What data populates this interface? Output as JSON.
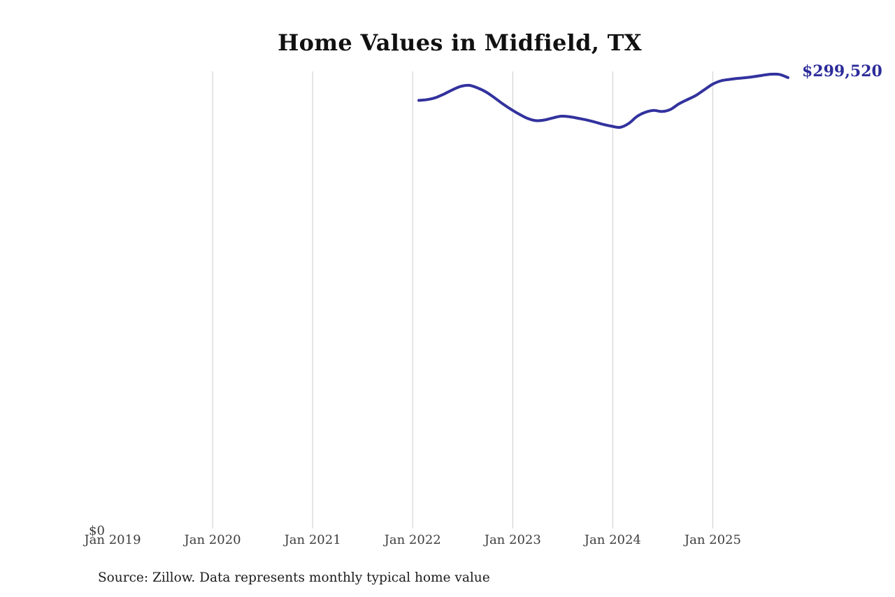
{
  "title": "Home Values in Midfield, TX",
  "end_label": "$299,520",
  "y_zero_label": "$0",
  "source_note": "Source: Zillow. Data represents monthly typical home value",
  "colors": {
    "background": "#ffffff",
    "line": "#32329e",
    "end_label": "#2c2c9b",
    "gridline": "#cccccc",
    "title_text": "#111111",
    "tick_text": "#3d3d3d",
    "source_text": "#1c1c1c"
  },
  "chart_data": {
    "type": "line",
    "title": "Home Values in Midfield, TX",
    "xlabel": "",
    "ylabel": "",
    "ylim": [
      0,
      302200
    ],
    "grid": "vertical-only",
    "legend": "none",
    "x_tick_labels": [
      "Jan 2019",
      "Jan 2020",
      "Jan 2021",
      "Jan 2022",
      "Jan 2023",
      "Jan 2024",
      "Jan 2025"
    ],
    "y_tick_labels": [
      "$0"
    ],
    "annotations": [
      {
        "text": "$299,520",
        "attached_to": "last-point"
      }
    ],
    "series": [
      {
        "name": "Monthly typical home value",
        "months": [
          "Jan 2022",
          "Feb 2022",
          "Mar 2022",
          "Apr 2022",
          "May 2022",
          "Jun 2022",
          "Jul 2022",
          "Aug 2022",
          "Sep 2022",
          "Oct 2022",
          "Nov 2022",
          "Dec 2022",
          "Jan 2023",
          "Feb 2023",
          "Mar 2023",
          "Apr 2023",
          "May 2023",
          "Jun 2023",
          "Jul 2023",
          "Aug 2023",
          "Sep 2023",
          "Oct 2023",
          "Nov 2023",
          "Dec 2023",
          "Jan 2024",
          "Feb 2024",
          "Mar 2024",
          "Apr 2024",
          "May 2024",
          "Jun 2024",
          "Jul 2024",
          "Aug 2024",
          "Sep 2024",
          "Oct 2024",
          "Nov 2024",
          "Dec 2024",
          "Jan 2025",
          "Feb 2025",
          "Mar 2025",
          "Apr 2025",
          "May 2025",
          "Jun 2025",
          "Jul 2025",
          "Aug 2025",
          "Sep 2025"
        ],
        "values": [
          284400,
          284900,
          286200,
          288600,
          291400,
          293700,
          294400,
          292700,
          290000,
          286200,
          282100,
          278400,
          275100,
          272300,
          270900,
          271400,
          272800,
          273900,
          273500,
          272500,
          271400,
          270000,
          268400,
          267200,
          266500,
          269000,
          273700,
          276500,
          277700,
          277000,
          278400,
          282100,
          284900,
          287600,
          291400,
          295100,
          297400,
          298300,
          299000,
          299500,
          300200,
          301100,
          301800,
          301600,
          299520
        ],
        "last_value": 299520
      }
    ]
  }
}
